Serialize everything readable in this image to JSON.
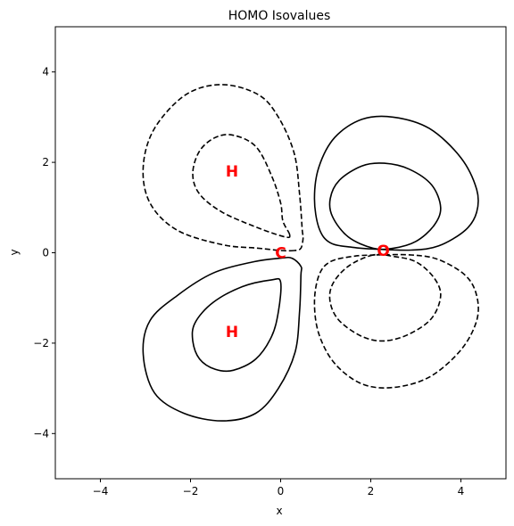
{
  "chart_data": {
    "type": "contour",
    "title": "HOMO Isovalues",
    "xlabel": "x",
    "ylabel": "y",
    "xlim": [
      -5,
      5
    ],
    "ylim": [
      -5,
      5
    ],
    "xticks": [
      -4,
      -2,
      0,
      2,
      4
    ],
    "yticks": [
      -4,
      -2,
      0,
      2,
      4
    ],
    "tick_labels_x": [
      "−4",
      "−2",
      "0",
      "2",
      "4"
    ],
    "tick_labels_y": [
      "−4",
      "−2",
      "0",
      "2",
      "4"
    ],
    "grid": false,
    "line_color": "#000000",
    "atom_color": "#ff0000",
    "atoms": [
      {
        "label": "C",
        "x": 0.0,
        "y": 0.0
      },
      {
        "label": "O",
        "x": 2.28,
        "y": 0.05
      },
      {
        "label": "H",
        "x": -1.08,
        "y": 1.8
      },
      {
        "label": "H",
        "x": -1.08,
        "y": -1.75
      }
    ],
    "contours": [
      {
        "name": "upper-left-outer",
        "style": "dashed",
        "points": [
          [
            0.3,
            0.05
          ],
          [
            0.0,
            0.05
          ],
          [
            -0.5,
            0.1
          ],
          [
            -1.3,
            0.18
          ],
          [
            -2.3,
            0.5
          ],
          [
            -2.9,
            1.1
          ],
          [
            -3.05,
            1.9
          ],
          [
            -2.8,
            2.75
          ],
          [
            -2.1,
            3.5
          ],
          [
            -1.3,
            3.72
          ],
          [
            -0.5,
            3.5
          ],
          [
            -0.05,
            3.0
          ],
          [
            0.3,
            2.2
          ],
          [
            0.42,
            1.3
          ],
          [
            0.48,
            0.5
          ],
          [
            0.5,
            0.35
          ],
          [
            0.45,
            0.1
          ],
          [
            0.3,
            0.05
          ]
        ]
      },
      {
        "name": "upper-left-inner",
        "style": "dashed",
        "points": [
          [
            0.2,
            0.4
          ],
          [
            0.1,
            0.35
          ],
          [
            -0.5,
            0.55
          ],
          [
            -1.3,
            0.9
          ],
          [
            -1.8,
            1.3
          ],
          [
            -1.95,
            1.75
          ],
          [
            -1.8,
            2.25
          ],
          [
            -1.45,
            2.55
          ],
          [
            -1.05,
            2.6
          ],
          [
            -0.55,
            2.35
          ],
          [
            -0.2,
            1.7
          ],
          [
            0.0,
            1.1
          ],
          [
            0.05,
            0.7
          ],
          [
            0.2,
            0.4
          ]
        ]
      },
      {
        "name": "lower-left-outer",
        "style": "solid",
        "points": [
          [
            0.25,
            -0.12
          ],
          [
            0.0,
            -0.12
          ],
          [
            -0.6,
            -0.2
          ],
          [
            -1.5,
            -0.45
          ],
          [
            -2.3,
            -0.95
          ],
          [
            -2.9,
            -1.5
          ],
          [
            -3.05,
            -2.25
          ],
          [
            -2.8,
            -3.1
          ],
          [
            -2.15,
            -3.55
          ],
          [
            -1.3,
            -3.72
          ],
          [
            -0.55,
            -3.55
          ],
          [
            -0.05,
            -3.0
          ],
          [
            0.32,
            -2.2
          ],
          [
            0.42,
            -1.3
          ],
          [
            0.45,
            -0.5
          ],
          [
            0.45,
            -0.3
          ],
          [
            0.25,
            -0.12
          ]
        ]
      },
      {
        "name": "lower-left-inner",
        "style": "solid",
        "points": [
          [
            0.0,
            -0.65
          ],
          [
            -0.2,
            -0.6
          ],
          [
            -0.85,
            -0.75
          ],
          [
            -1.5,
            -1.1
          ],
          [
            -1.9,
            -1.55
          ],
          [
            -1.95,
            -1.95
          ],
          [
            -1.8,
            -2.35
          ],
          [
            -1.45,
            -2.58
          ],
          [
            -1.05,
            -2.6
          ],
          [
            -0.55,
            -2.35
          ],
          [
            -0.2,
            -1.85
          ],
          [
            -0.05,
            -1.3
          ],
          [
            0.0,
            -0.65
          ]
        ]
      },
      {
        "name": "upper-right-outer",
        "style": "solid",
        "points": [
          [
            2.1,
            0.08
          ],
          [
            1.6,
            0.12
          ],
          [
            1.1,
            0.22
          ],
          [
            0.85,
            0.55
          ],
          [
            0.75,
            1.2
          ],
          [
            0.85,
            1.9
          ],
          [
            1.2,
            2.55
          ],
          [
            1.8,
            2.95
          ],
          [
            2.5,
            3.0
          ],
          [
            3.3,
            2.75
          ],
          [
            4.0,
            2.1
          ],
          [
            4.35,
            1.4
          ],
          [
            4.35,
            0.9
          ],
          [
            4.1,
            0.5
          ],
          [
            3.5,
            0.15
          ],
          [
            2.9,
            0.06
          ],
          [
            2.1,
            0.08
          ]
        ]
      },
      {
        "name": "upper-right-inner",
        "style": "solid",
        "points": [
          [
            2.05,
            0.1
          ],
          [
            1.5,
            0.35
          ],
          [
            1.15,
            0.8
          ],
          [
            1.1,
            1.2
          ],
          [
            1.3,
            1.6
          ],
          [
            1.8,
            1.92
          ],
          [
            2.3,
            1.98
          ],
          [
            2.85,
            1.85
          ],
          [
            3.35,
            1.5
          ],
          [
            3.55,
            1.0
          ],
          [
            3.4,
            0.6
          ],
          [
            3.0,
            0.25
          ],
          [
            2.5,
            0.1
          ],
          [
            2.05,
            0.1
          ]
        ]
      },
      {
        "name": "lower-right-outer",
        "style": "dashed",
        "points": [
          [
            2.1,
            -0.05
          ],
          [
            1.6,
            -0.08
          ],
          [
            1.1,
            -0.2
          ],
          [
            0.85,
            -0.5
          ],
          [
            0.75,
            -1.1
          ],
          [
            0.85,
            -1.8
          ],
          [
            1.2,
            -2.45
          ],
          [
            1.8,
            -2.9
          ],
          [
            2.5,
            -2.98
          ],
          [
            3.3,
            -2.75
          ],
          [
            4.0,
            -2.15
          ],
          [
            4.35,
            -1.5
          ],
          [
            4.35,
            -0.95
          ],
          [
            4.1,
            -0.5
          ],
          [
            3.5,
            -0.15
          ],
          [
            2.9,
            -0.05
          ],
          [
            2.1,
            -0.05
          ]
        ]
      },
      {
        "name": "lower-right-inner",
        "style": "dashed",
        "points": [
          [
            2.05,
            -0.05
          ],
          [
            1.5,
            -0.3
          ],
          [
            1.15,
            -0.7
          ],
          [
            1.1,
            -1.1
          ],
          [
            1.3,
            -1.5
          ],
          [
            1.8,
            -1.85
          ],
          [
            2.3,
            -1.95
          ],
          [
            2.85,
            -1.8
          ],
          [
            3.35,
            -1.45
          ],
          [
            3.55,
            -0.95
          ],
          [
            3.4,
            -0.55
          ],
          [
            3.0,
            -0.2
          ],
          [
            2.5,
            -0.08
          ],
          [
            2.05,
            -0.05
          ]
        ]
      }
    ]
  }
}
